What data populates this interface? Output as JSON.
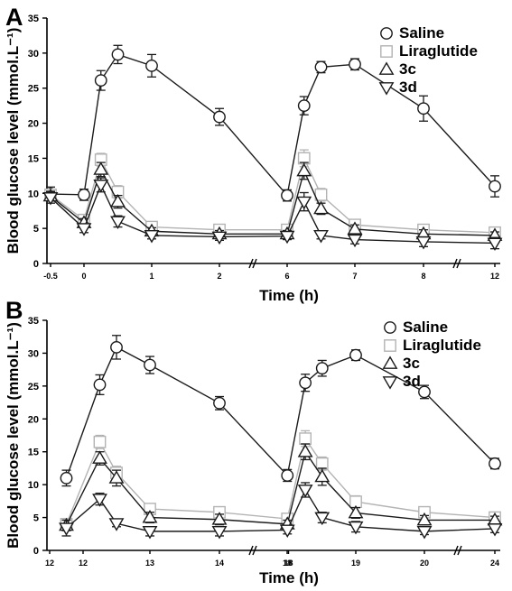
{
  "chart_data": [
    {
      "type": "line",
      "panel_label": "A",
      "xlabel": "Time (h)",
      "ylabel": "Blood glucose level (mmol.L⁻¹)",
      "ylim": [
        0,
        35
      ],
      "y_ticks": [
        0,
        5,
        10,
        15,
        20,
        25,
        30,
        35
      ],
      "x_ticks": [
        "-0.5",
        "0",
        "1",
        "2",
        "6",
        "7",
        "8",
        "12"
      ],
      "x_tick_positions": [
        -0.5,
        0,
        1,
        2,
        6,
        7,
        8,
        12
      ],
      "legend_position": "top-right",
      "grid": false,
      "x_breaks": [
        2,
        8
      ],
      "series": [
        {
          "name": "Saline",
          "marker": "circle",
          "color": "#1a1a1a",
          "x": [
            -0.5,
            0,
            0.25,
            0.5,
            1,
            2,
            6,
            6.25,
            6.5,
            7,
            8,
            12
          ],
          "y": [
            9.9,
            9.8,
            26.1,
            29.8,
            28.2,
            20.9,
            9.7,
            22.5,
            28.0,
            28.4,
            22.1,
            11.0
          ],
          "err": [
            1.0,
            0.8,
            1.4,
            1.3,
            1.6,
            1.2,
            0.8,
            1.3,
            0.8,
            0.8,
            1.8,
            1.5
          ]
        },
        {
          "name": "Liraglutide",
          "marker": "square",
          "color": "#b3b3b3",
          "x": [
            -0.5,
            0,
            0.25,
            0.5,
            1,
            2,
            6,
            6.25,
            6.5,
            7,
            8,
            12
          ],
          "y": [
            9.8,
            6.2,
            14.8,
            10.2,
            5.2,
            4.8,
            4.8,
            15.0,
            9.8,
            5.5,
            4.8,
            4.4
          ],
          "err": [
            0.8,
            0.8,
            0.9,
            0.9,
            0.6,
            0.5,
            0.6,
            1.2,
            0.9,
            0.6,
            0.5,
            0.5
          ]
        },
        {
          "name": "3c",
          "marker": "triangle-up",
          "color": "#1a1a1a",
          "x": [
            -0.5,
            0,
            0.25,
            0.5,
            1,
            2,
            6,
            6.25,
            6.5,
            7,
            8,
            12
          ],
          "y": [
            9.6,
            5.8,
            13.4,
            8.8,
            4.6,
            4.2,
            4.2,
            13.2,
            7.8,
            4.9,
            4.2,
            4.0
          ],
          "err": [
            0.7,
            0.6,
            1.0,
            0.9,
            0.5,
            0.5,
            0.5,
            1.2,
            0.8,
            0.6,
            0.6,
            0.5
          ]
        },
        {
          "name": "3d",
          "marker": "triangle-down",
          "color": "#1a1a1a",
          "x": [
            -0.5,
            0,
            0.25,
            0.5,
            1,
            2,
            6,
            6.25,
            6.5,
            7,
            8,
            12
          ],
          "y": [
            9.4,
            5.0,
            11.2,
            6.0,
            4.0,
            3.8,
            3.9,
            8.8,
            4.0,
            3.4,
            3.1,
            2.9
          ],
          "err": [
            0.8,
            0.6,
            1.0,
            0.8,
            0.5,
            0.5,
            0.5,
            1.3,
            0.5,
            0.6,
            0.7,
            0.8
          ]
        }
      ]
    },
    {
      "type": "line",
      "panel_label": "B",
      "xlabel": "Time (h)",
      "ylabel": "Blood glucose level (mmol.L⁻¹)",
      "ylim": [
        0,
        35
      ],
      "y_ticks": [
        0,
        5,
        10,
        15,
        20,
        25,
        30,
        35
      ],
      "x_ticks": [
        "12",
        "12",
        "13",
        "14",
        "18",
        "18",
        "19",
        "20",
        "24"
      ],
      "x_tick_positions": [
        11.5,
        12,
        13,
        14,
        17.7,
        18,
        19,
        20,
        24
      ],
      "legend_position": "top-right",
      "grid": false,
      "x_breaks": [
        14,
        20
      ],
      "series": [
        {
          "name": "Saline",
          "marker": "circle",
          "color": "#1a1a1a",
          "x": [
            11.75,
            12.25,
            12.5,
            13,
            14,
            17.75,
            18.25,
            18.5,
            19,
            20,
            24
          ],
          "y": [
            11.0,
            25.2,
            30.9,
            28.2,
            22.4,
            11.4,
            25.5,
            27.7,
            29.7,
            24.1,
            13.2
          ],
          "err": [
            1.2,
            1.5,
            1.8,
            1.3,
            1.0,
            0.9,
            1.3,
            1.2,
            0.8,
            1.0,
            0.8
          ]
        },
        {
          "name": "Liraglutide",
          "marker": "square",
          "color": "#b3b3b3",
          "x": [
            11.75,
            12.25,
            12.5,
            13,
            14,
            17.75,
            18.25,
            18.5,
            19,
            20,
            24
          ],
          "y": [
            4.0,
            16.5,
            11.8,
            6.3,
            5.8,
            4.8,
            17.0,
            13.2,
            7.4,
            5.8,
            5.0
          ],
          "err": [
            0.6,
            1.0,
            1.0,
            0.7,
            0.6,
            0.5,
            1.2,
            1.0,
            0.9,
            0.6,
            0.5
          ]
        },
        {
          "name": "3c",
          "marker": "triangle-up",
          "color": "#1a1a1a",
          "x": [
            11.75,
            12.25,
            12.5,
            13,
            14,
            17.75,
            18.25,
            18.5,
            19,
            20,
            24
          ],
          "y": [
            3.8,
            14.0,
            11.0,
            5.0,
            4.7,
            4.0,
            15.0,
            11.2,
            5.7,
            4.6,
            4.6
          ],
          "err": [
            0.8,
            1.0,
            1.2,
            0.8,
            0.8,
            0.6,
            1.2,
            1.3,
            0.8,
            0.7,
            0.6
          ]
        },
        {
          "name": "3d",
          "marker": "triangle-down",
          "color": "#1a1a1a",
          "x": [
            11.75,
            12.25,
            12.5,
            13,
            14,
            17.75,
            18.25,
            18.5,
            19,
            20,
            24
          ],
          "y": [
            3.4,
            7.8,
            4.1,
            2.9,
            2.9,
            3.1,
            9.2,
            5.0,
            3.6,
            2.9,
            3.3
          ],
          "err": [
            1.2,
            0.9,
            0.5,
            0.7,
            0.7,
            0.6,
            1.1,
            0.8,
            0.8,
            0.5,
            0.6
          ]
        }
      ]
    }
  ]
}
